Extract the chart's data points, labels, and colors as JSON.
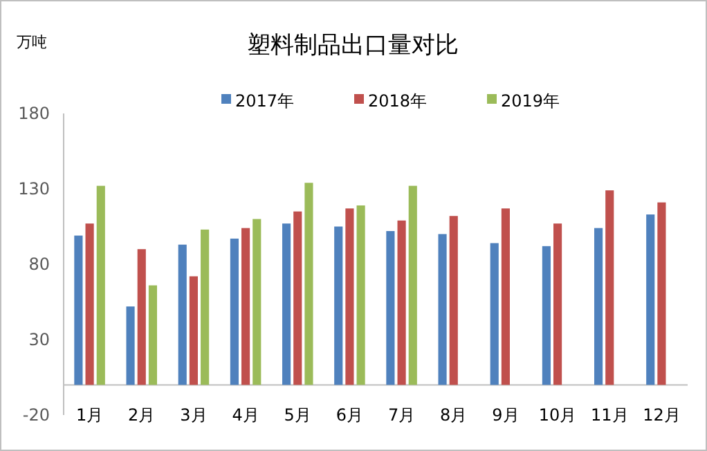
{
  "chart_data": {
    "type": "bar",
    "title": "塑料制品出口量对比",
    "ylabel": "万吨",
    "categories": [
      "1月",
      "2月",
      "3月",
      "4月",
      "5月",
      "6月",
      "7月",
      "8月",
      "9月",
      "10月",
      "11月",
      "12月"
    ],
    "series": [
      {
        "name": "2017年",
        "color": "#4f81bd",
        "values": [
          99,
          52,
          93,
          97,
          107,
          105,
          102,
          100,
          94,
          92,
          104,
          113
        ]
      },
      {
        "name": "2018年",
        "color": "#c0504d",
        "values": [
          107,
          90,
          72,
          104,
          115,
          117,
          109,
          112,
          117,
          107,
          129,
          121
        ]
      },
      {
        "name": "2019年",
        "color": "#9bbb59",
        "values": [
          132,
          66,
          103,
          110,
          134,
          119,
          132,
          null,
          null,
          null,
          null,
          null
        ]
      }
    ],
    "ylim": [
      -20,
      180
    ],
    "yticks": [
      -20,
      30,
      80,
      130,
      180
    ],
    "grid": false,
    "legend": "top"
  }
}
